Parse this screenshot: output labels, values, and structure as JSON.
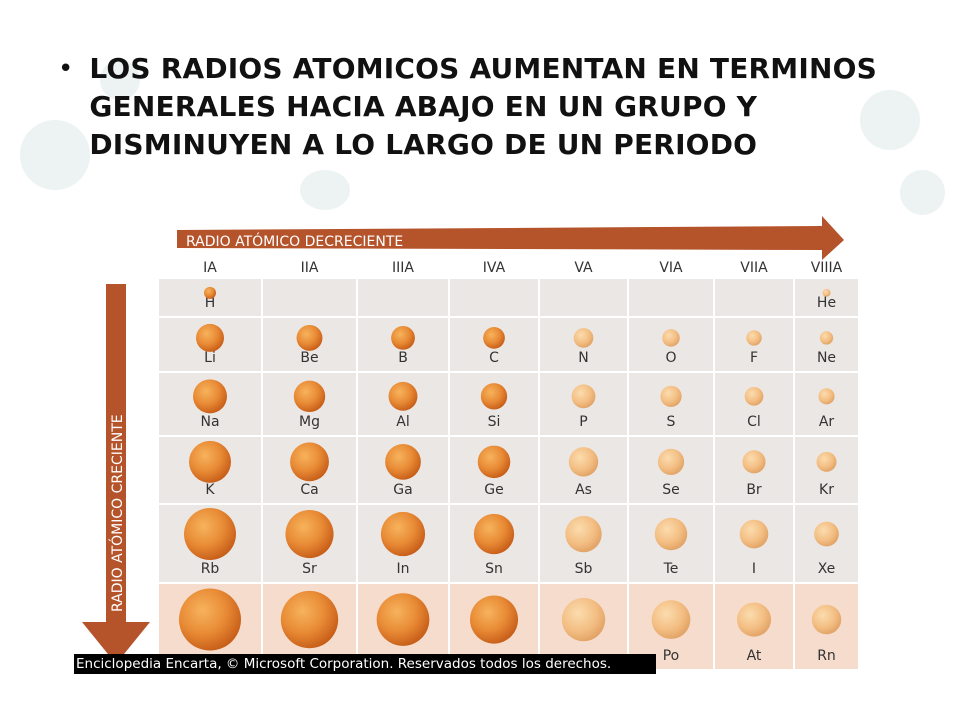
{
  "slide": {
    "bullet": "•",
    "title": "LOS RADIOS ATOMICOS AUMENTAN EN TERMINOS GENERALES HACIA ABAJO EN UN GRUPO Y DISMINUYEN A LO LARGO DE UN PERIODO"
  },
  "figure": {
    "top_arrow_label": "RADIO ATÓMICO DECRECIENTE",
    "side_arrow_label": "RADIO ATÓMICO CRECIENTE",
    "groups": [
      "IA",
      "IIA",
      "IIIA",
      "IVA",
      "VA",
      "VIA",
      "VIIA",
      "VIIIA"
    ],
    "rows": [
      [
        "H",
        "",
        "",
        "",
        "",
        "",
        "",
        "He"
      ],
      [
        "Li",
        "Be",
        "B",
        "C",
        "N",
        "O",
        "F",
        "Ne"
      ],
      [
        "Na",
        "Mg",
        "Al",
        "Si",
        "P",
        "S",
        "Cl",
        "Ar"
      ],
      [
        "K",
        "Ca",
        "Ga",
        "Ge",
        "As",
        "Se",
        "Br",
        "Kr"
      ],
      [
        "Rb",
        "Sr",
        "In",
        "Sn",
        "Sb",
        "Te",
        "I",
        "Xe"
      ],
      [
        "",
        "",
        "",
        "",
        "",
        "Po",
        "At",
        "Rn"
      ]
    ],
    "caption": "Enciclopedia Encarta, © Microsoft Corporation. Reservados todos los derechos.",
    "colors": {
      "arrow": "#b5532b",
      "cell_light": "#ebe7e4",
      "cell_row6": "#f5dccd",
      "grid_line": "#ffffff",
      "sphere_dark": "#d9691e",
      "sphere_light": "#f4c58a"
    }
  }
}
